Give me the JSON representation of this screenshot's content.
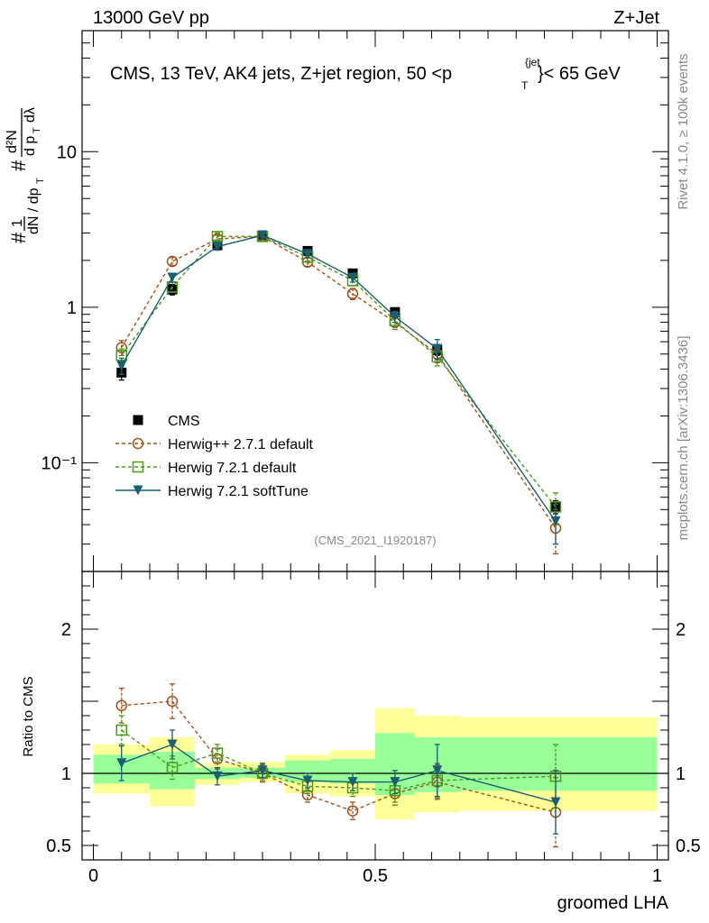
{
  "header": {
    "left": "13000 GeV pp",
    "right": "Z+Jet"
  },
  "side": {
    "rivet": "Rivet 4.1.0, ≥ 100k events",
    "mcplots": "mcplots.cern.ch [arXiv:1306.3436]"
  },
  "chart_data": [
    {
      "type": "line",
      "title": "CMS, 13 TeV, AK4 jets, Z+jet region, 50 <p_T^{jet}< 65 GeV",
      "ylabel": "1/(dN/dp_T) d²N/(dp_T dλ)",
      "yscale": "log",
      "ylim": [
        0.02,
        60
      ],
      "xlim": [
        -0.02,
        1.02
      ],
      "yticks": [
        {
          "v": 10,
          "label": "10"
        },
        {
          "v": 1,
          "label": "1"
        },
        {
          "v": 0.1,
          "label": "10⁻¹"
        }
      ],
      "watermark": "(CMS_2021_I1920187)",
      "x": [
        0.05,
        0.14,
        0.22,
        0.3,
        0.38,
        0.46,
        0.535,
        0.61,
        0.82
      ],
      "series": [
        {
          "name": "CMS",
          "marker": "square",
          "color": "#000000",
          "values": [
            0.38,
            1.3,
            2.5,
            2.85,
            2.3,
            1.65,
            0.93,
            0.53,
            0.052
          ],
          "err": [
            0.04,
            0.1,
            0.15,
            0.15,
            0.12,
            0.09,
            0.06,
            0.04,
            0.005
          ]
        },
        {
          "name": "Herwig++ 2.7.1 default",
          "marker": "circle",
          "color": "#a0501a",
          "dashed": true,
          "values": [
            0.55,
            1.97,
            2.75,
            2.85,
            1.95,
            1.22,
            0.8,
            0.5,
            0.038
          ],
          "err": [
            0.06,
            0.12,
            0.15,
            0.15,
            0.12,
            0.1,
            0.08,
            0.06,
            0.012
          ]
        },
        {
          "name": "Herwig 7.2.1 default",
          "marker": "open-square",
          "color": "#4a9a1a",
          "dashed": true,
          "values": [
            0.49,
            1.35,
            2.85,
            2.85,
            2.1,
            1.48,
            0.82,
            0.48,
            0.052
          ],
          "err": [
            0.05,
            0.1,
            0.15,
            0.15,
            0.12,
            0.1,
            0.08,
            0.06,
            0.012
          ]
        },
        {
          "name": "Herwig 7.2.1 softTune",
          "marker": "triangle-down",
          "color": "#1a5e70",
          "values": [
            0.42,
            1.55,
            2.45,
            2.9,
            2.2,
            1.55,
            0.87,
            0.54,
            0.042
          ],
          "err": [
            0.05,
            0.1,
            0.12,
            0.12,
            0.1,
            0.1,
            0.07,
            0.08,
            0.012
          ]
        }
      ]
    },
    {
      "type": "line",
      "xlabel": "groomed LHA",
      "ylabel": "Ratio to CMS",
      "ylim": [
        0.4,
        2.4
      ],
      "xlim": [
        -0.02,
        1.02
      ],
      "yticks": [
        {
          "v": 2,
          "label": "2"
        },
        {
          "v": 1,
          "label": "1"
        },
        {
          "v": 0.5,
          "label": "0.5"
        }
      ],
      "xticks": [
        {
          "v": 0,
          "label": "0"
        },
        {
          "v": 0.5,
          "label": "0.5"
        },
        {
          "v": 1,
          "label": "1"
        }
      ],
      "bands": {
        "edges": [
          0,
          0.1,
          0.18,
          0.26,
          0.34,
          0.42,
          0.5,
          0.57,
          0.65,
          1.0
        ],
        "yellow": [
          [
            0.86,
            1.2
          ],
          [
            0.77,
            1.25
          ],
          [
            0.92,
            1.07
          ],
          [
            0.94,
            1.08
          ],
          [
            0.86,
            1.13
          ],
          [
            0.84,
            1.16
          ],
          [
            0.68,
            1.45
          ],
          [
            0.73,
            1.4
          ],
          [
            0.74,
            1.39
          ]
        ],
        "green": [
          [
            0.93,
            1.13
          ],
          [
            0.89,
            1.15
          ],
          [
            0.96,
            1.04
          ],
          [
            0.97,
            1.04
          ],
          [
            0.94,
            1.09
          ],
          [
            0.93,
            1.1
          ],
          [
            0.85,
            1.28
          ],
          [
            0.87,
            1.25
          ],
          [
            0.88,
            1.25
          ]
        ]
      },
      "x": [
        0.05,
        0.14,
        0.22,
        0.3,
        0.38,
        0.46,
        0.535,
        0.61,
        0.82
      ],
      "series": [
        {
          "name": "Herwig++ 2.7.1 default",
          "marker": "circle",
          "color": "#a0501a",
          "dashed": true,
          "values": [
            1.47,
            1.5,
            1.1,
            1.0,
            0.85,
            0.74,
            0.86,
            0.94,
            0.73
          ],
          "err": [
            0.12,
            0.12,
            0.07,
            0.06,
            0.05,
            0.06,
            0.08,
            0.12,
            0.24
          ]
        },
        {
          "name": "Herwig 7.2.1 default",
          "marker": "open-square",
          "color": "#4a9a1a",
          "dashed": true,
          "values": [
            1.3,
            1.04,
            1.14,
            1.0,
            0.91,
            0.9,
            0.88,
            0.95,
            0.98
          ],
          "err": [
            0.1,
            0.08,
            0.06,
            0.05,
            0.05,
            0.06,
            0.08,
            0.12,
            0.22
          ]
        },
        {
          "name": "Herwig 7.2.1 softTune",
          "marker": "triangle-down",
          "color": "#1a5e70",
          "values": [
            1.07,
            1.2,
            0.98,
            1.02,
            0.95,
            0.94,
            0.94,
            1.02,
            0.8
          ],
          "err": [
            0.12,
            0.1,
            0.06,
            0.05,
            0.05,
            0.06,
            0.08,
            0.18,
            0.22
          ]
        }
      ]
    }
  ]
}
